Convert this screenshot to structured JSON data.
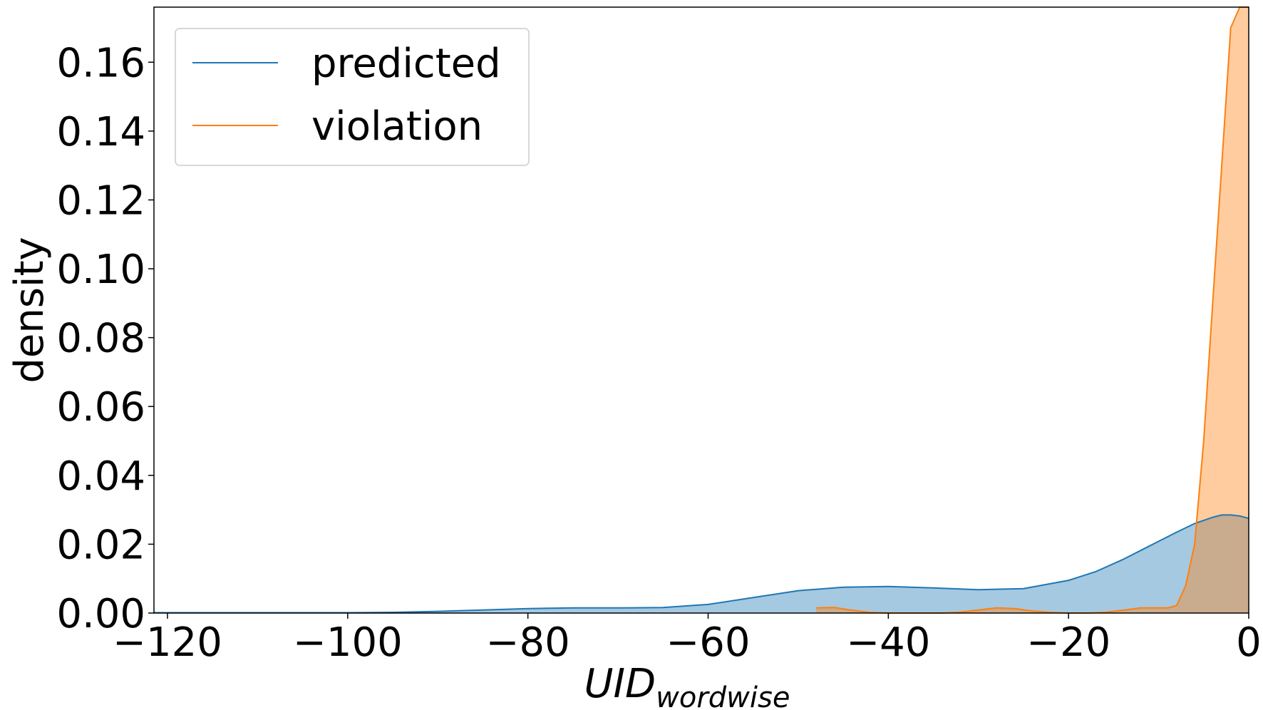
{
  "chart_data": {
    "type": "area",
    "title": "",
    "xlabel": "UID",
    "xlabel_subscript": "wordwise",
    "ylabel": "density",
    "xlim": [
      -121.5,
      0
    ],
    "ylim": [
      0,
      0.176
    ],
    "x_ticks": [
      -120,
      -100,
      -80,
      -60,
      -40,
      -20,
      0
    ],
    "y_ticks": [
      0.0,
      0.02,
      0.04,
      0.06,
      0.08,
      0.1,
      0.12,
      0.14,
      0.16
    ],
    "x_tick_labels": [
      "−120",
      "−100",
      "−80",
      "−60",
      "−40",
      "−20",
      "0"
    ],
    "y_tick_labels": [
      "0.00",
      "0.02",
      "0.04",
      "0.06",
      "0.08",
      "0.10",
      "0.12",
      "0.14",
      "0.16"
    ],
    "grid": false,
    "legend_position": "top-left",
    "series": [
      {
        "name": "predicted",
        "color": "#1f77b4",
        "fill": "#a6c9e3",
        "x": [
          -121.5,
          -115,
          -110,
          -105,
          -100,
          -95,
          -90,
          -85,
          -80,
          -75,
          -70,
          -65,
          -60,
          -55,
          -50,
          -45,
          -40,
          -35,
          -30,
          -25,
          -20,
          -17,
          -14,
          -11,
          -8,
          -6,
          -4,
          -3,
          -2,
          -1,
          0
        ],
        "y": [
          0.0001,
          0.0001,
          0.0001,
          0.0001,
          0.0001,
          0.0002,
          0.0005,
          0.0009,
          0.0013,
          0.0015,
          0.0015,
          0.0016,
          0.0025,
          0.0045,
          0.0065,
          0.0075,
          0.0077,
          0.0073,
          0.0068,
          0.0071,
          0.0095,
          0.012,
          0.0155,
          0.0195,
          0.0235,
          0.026,
          0.0278,
          0.0285,
          0.0285,
          0.0282,
          0.0275
        ]
      },
      {
        "name": "violation",
        "color": "#ff7f0e",
        "fill": "#ffbf87",
        "x": [
          -48,
          -46,
          -44,
          -42,
          -40,
          -38,
          -36,
          -34,
          -32,
          -30,
          -28,
          -26,
          -24,
          -22,
          -20,
          -18,
          -16,
          -14,
          -12,
          -10,
          -9,
          -8,
          -7,
          -6,
          -5,
          -4,
          -3,
          -2,
          -1,
          -0.5,
          0
        ],
        "y": [
          0.0015,
          0.0016,
          0.0008,
          0.0002,
          0.0,
          0.0,
          0.0,
          0.0,
          0.0003,
          0.0009,
          0.0015,
          0.0013,
          0.0006,
          0.0002,
          0.0,
          0.0,
          0.0002,
          0.0008,
          0.0015,
          0.0015,
          0.0015,
          0.0022,
          0.008,
          0.02,
          0.05,
          0.09,
          0.13,
          0.17,
          0.176,
          0.176,
          0.176
        ]
      }
    ]
  }
}
